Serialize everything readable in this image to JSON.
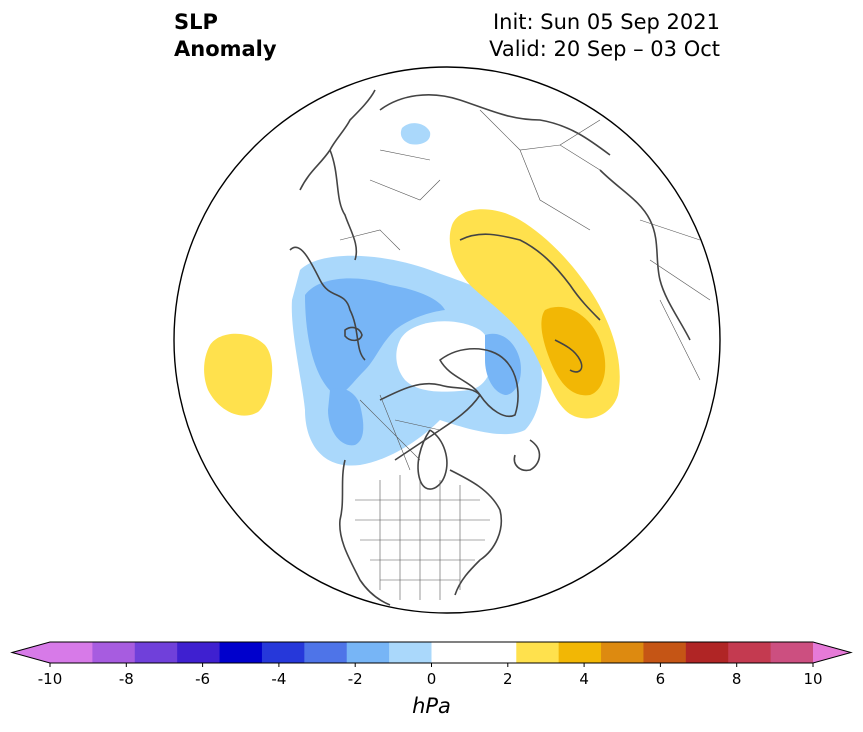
{
  "title": {
    "left_line1": "SLP",
    "left_line2": "Anomaly",
    "right_line1": "Init: Sun 05 Sep 2021",
    "right_line2": "Valid: 20 Sep – 03 Oct"
  },
  "map": {
    "projection": "north-polar-stereographic",
    "border_color": "#000000",
    "coastline_color": "#444444",
    "anomaly_regions": [
      {
        "name": "north-pacific-low",
        "level": -2,
        "color": "#aad8fb"
      },
      {
        "name": "north-pacific-low-core",
        "level": -3,
        "color": "#77b5f6"
      },
      {
        "name": "greenland-low",
        "level": -3,
        "color": "#77b5f6"
      },
      {
        "name": "arctic-small-low",
        "level": -2,
        "color": "#aad8fb"
      },
      {
        "name": "siberia-high",
        "level": 2,
        "color": "#ffe14d"
      },
      {
        "name": "siberia-high-core",
        "level": 3,
        "color": "#f2b705"
      },
      {
        "name": "atlantic-high",
        "level": 2,
        "color": "#ffe14d"
      }
    ]
  },
  "colorbar": {
    "unit": "hPa",
    "ticks": [
      "-10",
      "-8",
      "-6",
      "-4",
      "-2",
      "0",
      "2",
      "4",
      "6",
      "8",
      "10"
    ],
    "extend_low_color": "#d77ae8",
    "extend_high_color": "#e67ad8",
    "colors": [
      "#d77ae8",
      "#a75ce0",
      "#7040da",
      "#3f20d0",
      "#0000cc",
      "#2638da",
      "#4e74e8",
      "#77b5f6",
      "#aad8fb",
      "#ffffff",
      "#ffffff",
      "#ffe14d",
      "#f2b705",
      "#dd8a10",
      "#c55515",
      "#b02525",
      "#c43a50",
      "#cc4f80",
      "#d966b0",
      "#e67ad8"
    ]
  }
}
